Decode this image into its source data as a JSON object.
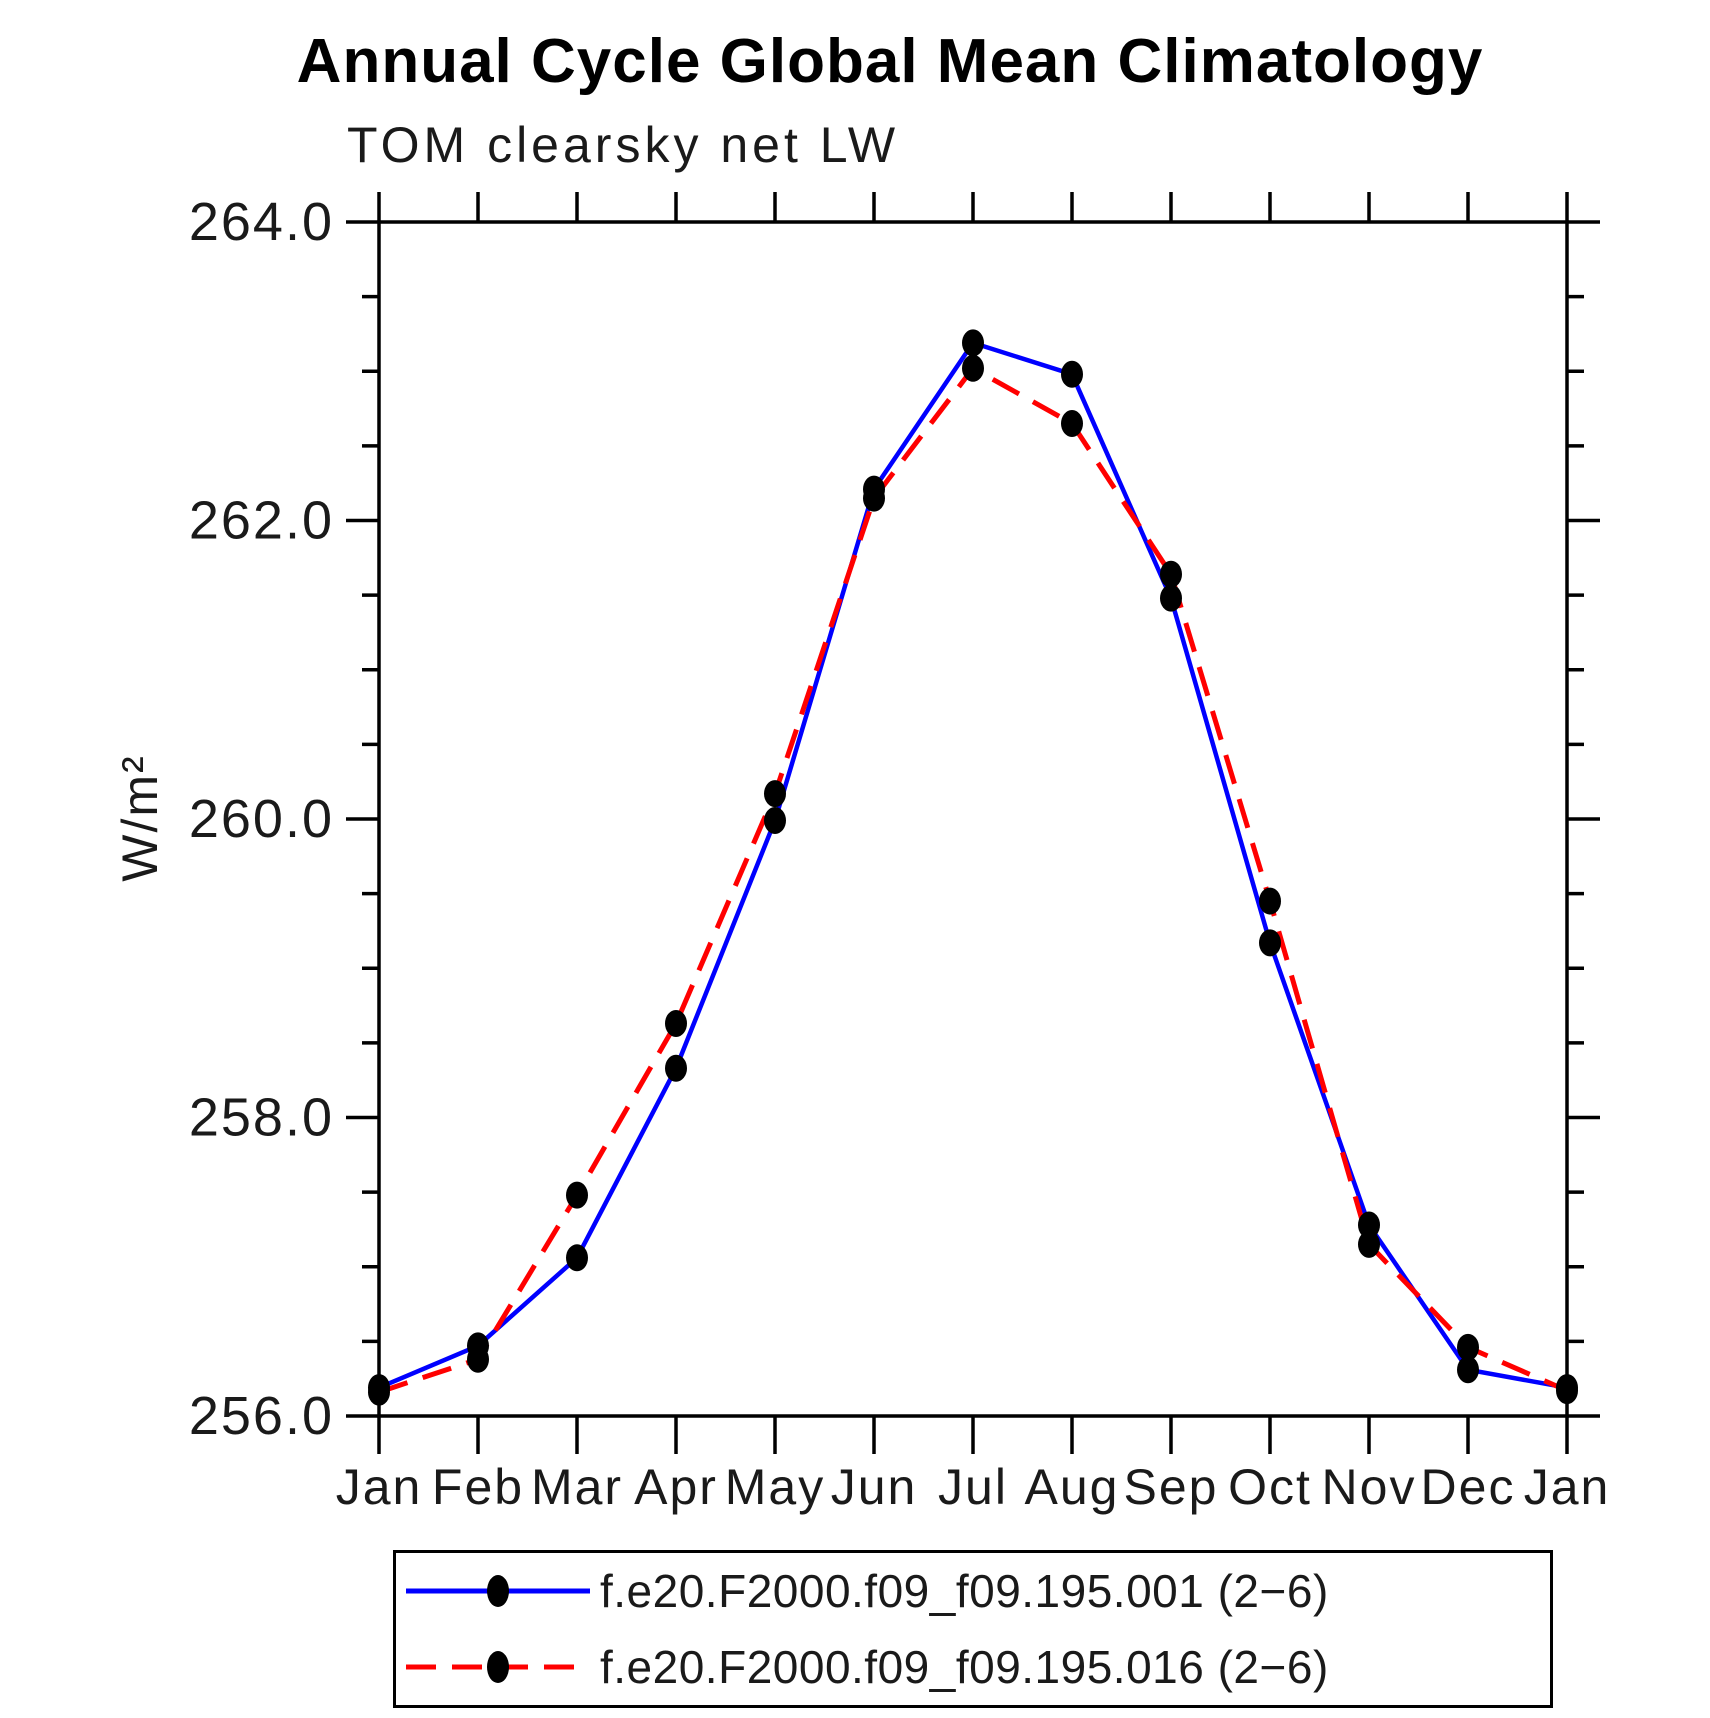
{
  "title": "Annual Cycle Global Mean Climatology",
  "subtitle": "TOM clearsky net LW",
  "y_axis_label": "W/m²",
  "chart_data": {
    "type": "line",
    "categories": [
      "Jan",
      "Feb",
      "Mar",
      "Apr",
      "May",
      "Jun",
      "Jul",
      "Aug",
      "Sep",
      "Oct",
      "Nov",
      "Dec",
      "Jan"
    ],
    "series": [
      {
        "name": "f.e20.F2000.f09_f09.195.001 (2−6)",
        "color": "#0000ff",
        "line_style": "solid",
        "values": [
          256.19,
          256.47,
          257.06,
          258.33,
          259.99,
          262.21,
          263.19,
          262.98,
          261.48,
          259.17,
          257.28,
          256.31,
          256.19
        ]
      },
      {
        "name": "f.e20.F2000.f09_f09.195.016 (2−6)",
        "color": "#ff0000",
        "line_style": "dashed",
        "values": [
          256.16,
          256.38,
          257.48,
          258.63,
          260.17,
          262.15,
          263.02,
          262.65,
          261.64,
          259.45,
          257.15,
          256.46,
          256.17
        ]
      }
    ],
    "marker": {
      "shape": "circle",
      "color": "#000000"
    },
    "ylim": [
      256.0,
      264.0
    ],
    "ytick_major_step": 2.0,
    "ytick_minor_step": 0.5,
    "ytick_labels": [
      "256.0",
      "258.0",
      "260.0",
      "262.0",
      "264.0"
    ],
    "grid": false,
    "legend_position": "bottom",
    "frame_color": "#000000"
  }
}
